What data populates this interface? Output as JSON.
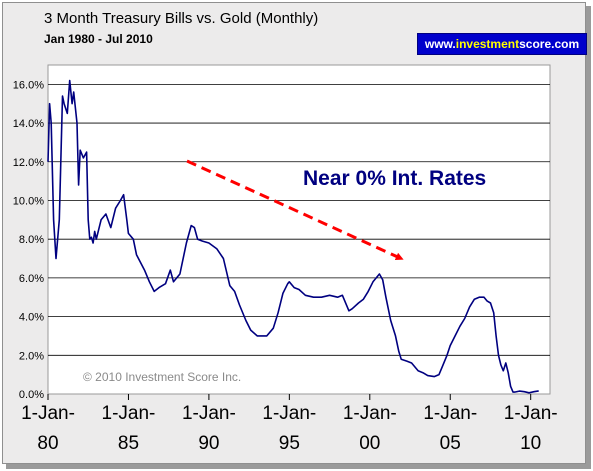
{
  "header": {
    "title": "3 Month Treasury Bills vs. Gold (Monthly)",
    "subtitle": "Jan 1980 - Jul 2010",
    "brand_pre": "www.",
    "brand_highlight": "investment",
    "brand_post": "score.com"
  },
  "colors": {
    "line": "#000080",
    "arrow": "#ff0000",
    "annotation": "#000080",
    "brand_bg": "#0000cc",
    "brand_highlight": "#ffff00",
    "frame_bg": "#ecebeb"
  },
  "chart_data": {
    "type": "line",
    "title": "3 Month Treasury Bills vs. Gold (Monthly)",
    "subtitle": "Jan 1980 - Jul 2010",
    "xlabel": "",
    "ylabel": "",
    "ylim": [
      0,
      17
    ],
    "xlim": [
      1980.0,
      2010.5
    ],
    "grid": true,
    "y_ticks": [
      0,
      2,
      4,
      6,
      8,
      10,
      12,
      14,
      16
    ],
    "y_tick_labels": [
      "0.0%",
      "2.0%",
      "4.0%",
      "6.0%",
      "8.0%",
      "10.0%",
      "12.0%",
      "14.0%",
      "16.0%"
    ],
    "x_ticks": [
      1980,
      1985,
      1990,
      1995,
      2000,
      2005,
      2010
    ],
    "x_tick_labels": [
      [
        "1-Jan-",
        "80"
      ],
      [
        "1-Jan-",
        "85"
      ],
      [
        "1-Jan-",
        "90"
      ],
      [
        "1-Jan-",
        "95"
      ],
      [
        "1-Jan-",
        "00"
      ],
      [
        "1-Jan-",
        "05"
      ],
      [
        "1-Jan-",
        "10"
      ]
    ],
    "series": [
      {
        "x": [
          1980.0,
          1980.1,
          1980.2,
          1980.35,
          1980.5,
          1980.7,
          1980.9,
          1981.0,
          1981.2,
          1981.35,
          1981.5,
          1981.6,
          1981.8,
          1981.9,
          1982.0,
          1982.2,
          1982.4,
          1982.5,
          1982.6,
          1982.7,
          1982.8,
          1982.9,
          1983.0,
          1983.3,
          1983.6,
          1983.9,
          1984.2,
          1984.5,
          1984.7,
          1984.9,
          1985.0,
          1985.3,
          1985.5,
          1986.0,
          1986.3,
          1986.6,
          1986.9,
          1987.3,
          1987.6,
          1987.8,
          1988.2,
          1988.6,
          1988.9,
          1989.1,
          1989.3,
          1989.6,
          1990.0,
          1990.5,
          1990.9,
          1991.3,
          1991.6,
          1991.9,
          1992.3,
          1992.6,
          1993.0,
          1993.6,
          1994.0,
          1994.3,
          1994.6,
          1994.9,
          1995.0,
          1995.3,
          1995.6,
          1996.0,
          1996.5,
          1997.0,
          1997.5,
          1998.0,
          1998.3,
          1998.7,
          1998.9,
          1999.3,
          1999.6,
          1999.9,
          2000.2,
          2000.4,
          2000.6,
          2000.8,
          2001.0,
          2001.3,
          2001.6,
          2001.8,
          2001.95,
          2002.3,
          2002.6,
          2003.0,
          2003.3,
          2003.6,
          2004.0,
          2004.3,
          2004.5,
          2004.8,
          2005.0,
          2005.3,
          2005.6,
          2005.9,
          2006.2,
          2006.5,
          2006.8,
          2007.1,
          2007.3,
          2007.5,
          2007.7,
          2007.85,
          2008.0,
          2008.15,
          2008.3,
          2008.45,
          2008.6,
          2008.75,
          2008.9,
          2009.0,
          2009.3,
          2009.6,
          2009.9,
          2010.2,
          2010.5
        ],
        "y": [
          12.0,
          15.0,
          14.0,
          9.0,
          7.0,
          9.0,
          15.4,
          15.0,
          14.5,
          16.2,
          15.0,
          15.6,
          14.0,
          10.8,
          12.6,
          12.2,
          12.5,
          9.0,
          8.0,
          8.1,
          7.8,
          8.4,
          8.0,
          9.0,
          9.3,
          8.6,
          9.6,
          10.0,
          10.3,
          9.0,
          8.3,
          8.0,
          7.2,
          6.4,
          5.8,
          5.3,
          5.5,
          5.7,
          6.4,
          5.8,
          6.2,
          7.8,
          8.7,
          8.6,
          8.0,
          7.9,
          7.8,
          7.5,
          7.0,
          5.6,
          5.3,
          4.6,
          3.8,
          3.3,
          3.0,
          3.0,
          3.4,
          4.2,
          5.2,
          5.7,
          5.8,
          5.5,
          5.4,
          5.1,
          5.0,
          5.0,
          5.1,
          5.0,
          5.1,
          4.3,
          4.4,
          4.7,
          4.9,
          5.3,
          5.8,
          6.0,
          6.2,
          5.9,
          5.0,
          3.8,
          3.0,
          2.2,
          1.8,
          1.7,
          1.6,
          1.2,
          1.1,
          0.95,
          0.9,
          1.0,
          1.4,
          2.0,
          2.5,
          3.0,
          3.5,
          3.9,
          4.5,
          4.9,
          5.0,
          5.0,
          4.8,
          4.7,
          4.2,
          3.0,
          2.0,
          1.5,
          1.2,
          1.6,
          1.1,
          0.4,
          0.1,
          0.1,
          0.15,
          0.12,
          0.06,
          0.12,
          0.16
        ]
      }
    ],
    "annotations": [
      {
        "text": "Near 0% Int. Rates"
      }
    ],
    "copyright": "© 2010 Investment Score Inc."
  }
}
